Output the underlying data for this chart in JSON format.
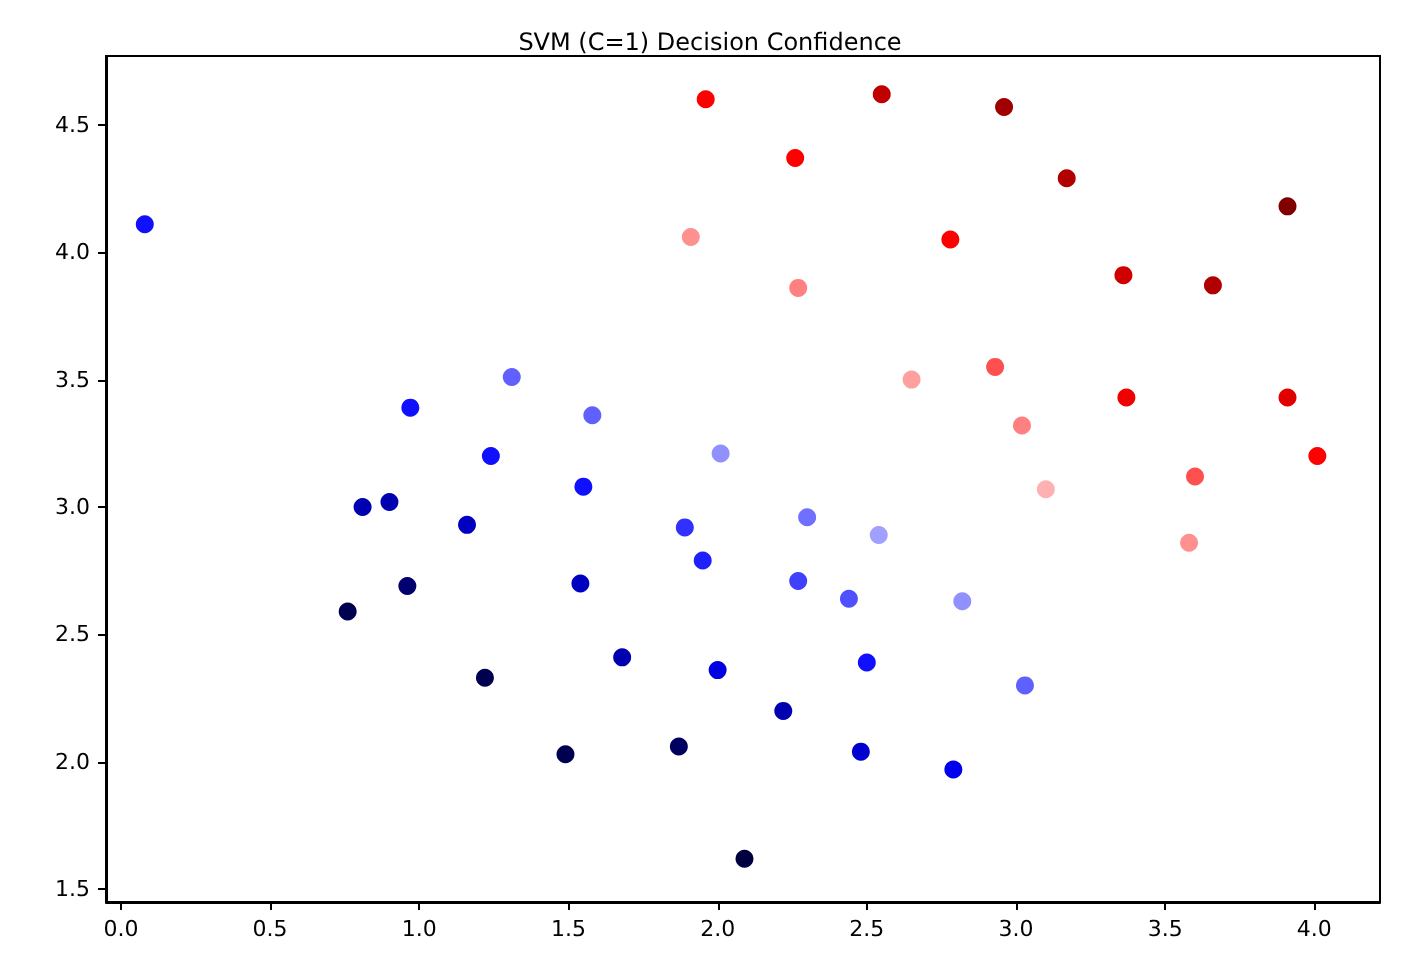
{
  "chart_data": {
    "type": "scatter",
    "title": "SVM (C=1) Decision Confidence",
    "marker": "circle",
    "grid": false,
    "xlim": [
      -0.05,
      4.22
    ],
    "ylim": [
      1.45,
      4.77
    ],
    "xticks": [
      {
        "value": 0,
        "label": "0.0"
      },
      {
        "value": 0.5,
        "label": "0.5"
      },
      {
        "value": 1,
        "label": "1.0"
      },
      {
        "value": 1.5,
        "label": "1.5"
      },
      {
        "value": 2,
        "label": "2.0"
      },
      {
        "value": 2.5,
        "label": "2.5"
      },
      {
        "value": 3,
        "label": "3.0"
      },
      {
        "value": 3.5,
        "label": "3.5"
      },
      {
        "value": 4,
        "label": "4.0"
      }
    ],
    "yticks": [
      {
        "value": 1.5,
        "label": "1.5"
      },
      {
        "value": 2,
        "label": "2.0"
      },
      {
        "value": 2.5,
        "label": "2.5"
      },
      {
        "value": 3,
        "label": "3.0"
      },
      {
        "value": 3.5,
        "label": "3.5"
      },
      {
        "value": 4,
        "label": "4.0"
      },
      {
        "value": 4.5,
        "label": "4.5"
      }
    ],
    "x": [
      0.08,
      0.97,
      1.31,
      1.58,
      1.24,
      2.01,
      0.81,
      0.9,
      1.16,
      1.55,
      1.89,
      1.95,
      2.3,
      2.54,
      2.27,
      2.44,
      2.82,
      0.76,
      0.96,
      1.54,
      1.68,
      2.0,
      2.5,
      3.03,
      1.22,
      2.22,
      1.49,
      1.87,
      2.48,
      2.79,
      2.09,
      1.96,
      2.55,
      2.96,
      2.26,
      3.17,
      3.91,
      1.91,
      2.78,
      2.27,
      3.36,
      3.66,
      2.65,
      2.93,
      3.37,
      3.91,
      3.02,
      3.1,
      3.6,
      4.01,
      3.58
    ],
    "values": [
      4.11,
      3.39,
      3.51,
      3.36,
      3.2,
      3.21,
      3.0,
      3.02,
      2.93,
      3.08,
      2.92,
      2.79,
      2.96,
      2.89,
      2.71,
      2.64,
      2.63,
      2.59,
      2.69,
      2.7,
      2.41,
      2.36,
      2.39,
      2.3,
      2.33,
      2.2,
      2.03,
      2.06,
      2.04,
      1.97,
      1.62,
      4.6,
      4.62,
      4.57,
      4.37,
      4.29,
      4.18,
      4.06,
      4.05,
      3.86,
      3.91,
      3.87,
      3.5,
      3.55,
      3.43,
      3.43,
      3.32,
      3.07,
      3.12,
      3.2,
      2.86
    ],
    "colors": [
      "#1010ff",
      "#1010ff",
      "#6060ff",
      "#6060ff",
      "#1010ff",
      "#9090ff",
      "#0000b0",
      "#0000b0",
      "#0000c0",
      "#1010ff",
      "#3030ff",
      "#2020ff",
      "#7070ff",
      "#a0a0ff",
      "#4040ff",
      "#5050ff",
      "#9090ff",
      "#000050",
      "#000070",
      "#0000c0",
      "#0000b0",
      "#0000e0",
      "#1010ff",
      "#6060ff",
      "#000050",
      "#0000b0",
      "#000050",
      "#000060",
      "#0000d0",
      "#0000f0",
      "#000040",
      "#ff0000",
      "#c00000",
      "#a00000",
      "#ff0000",
      "#b00000",
      "#800000",
      "#ff9090",
      "#ff0000",
      "#ff8080",
      "#d00000",
      "#b00000",
      "#ffa0a0",
      "#ff5050",
      "#f00000",
      "#e00000",
      "#ff8080",
      "#ffb0b0",
      "#ff5050",
      "#ff0000",
      "#ff9090"
    ]
  }
}
